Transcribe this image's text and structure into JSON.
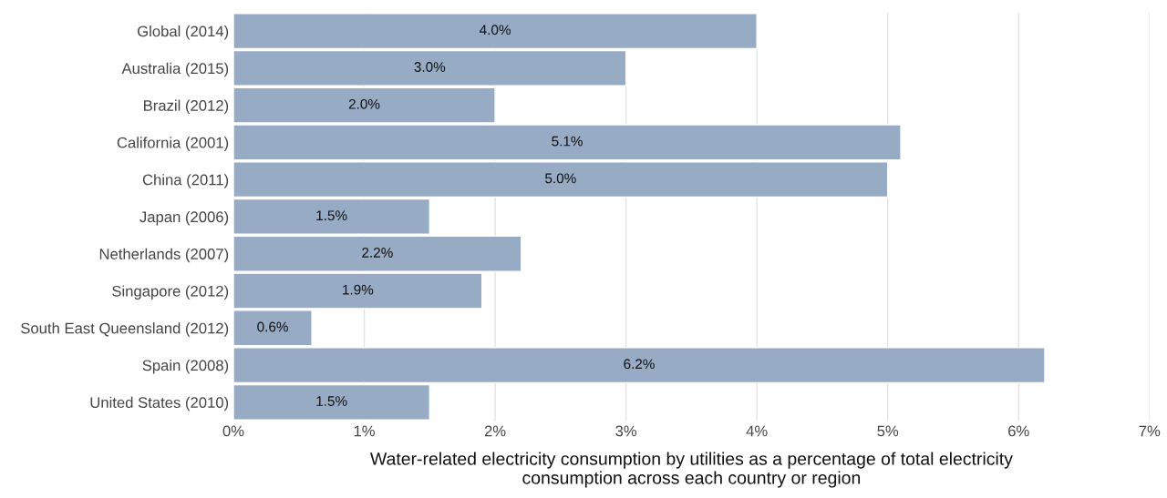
{
  "chart_data": {
    "type": "bar",
    "orientation": "horizontal",
    "categories": [
      "Global (2014)",
      "Australia (2015)",
      "Brazil (2012)",
      "California (2001)",
      "China (2011)",
      "Japan (2006)",
      "Netherlands (2007)",
      "Singapore (2012)",
      "South East Queensland (2012)",
      "Spain (2008)",
      "United States (2010)"
    ],
    "values": [
      4.0,
      3.0,
      2.0,
      5.1,
      5.0,
      1.5,
      2.2,
      1.9,
      0.6,
      6.2,
      1.5
    ],
    "value_labels": [
      "4.0%",
      "3.0%",
      "2.0%",
      "5.1%",
      "5.0%",
      "1.5%",
      "2.2%",
      "1.9%",
      "0.6%",
      "6.2%",
      "1.5%"
    ],
    "color": "#97abc5",
    "xlim": [
      0,
      7
    ],
    "xticks": [
      {
        "value": 0,
        "label": "0%"
      },
      {
        "value": 1,
        "label": "1%"
      },
      {
        "value": 2,
        "label": "2%"
      },
      {
        "value": 3,
        "label": "3%"
      },
      {
        "value": 4,
        "label": "4%"
      },
      {
        "value": 5,
        "label": "5%"
      },
      {
        "value": 6,
        "label": "6%"
      },
      {
        "value": 7,
        "label": "7%"
      }
    ],
    "xlabel": "Water-related electricity consumption by utilities as a percentage of total electricity consumption across each country or region",
    "grid": "x"
  }
}
